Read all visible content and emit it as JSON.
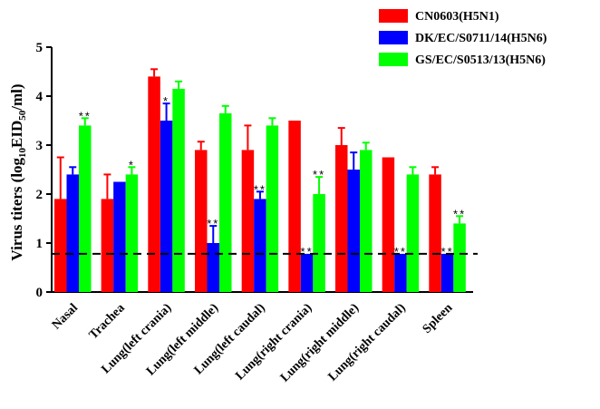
{
  "chart_data": {
    "type": "bar",
    "title": "",
    "xlabel": "",
    "ylabel": "Virus titers (log",
    "ylabel_sub": "10",
    "ylabel_mid": "EID",
    "ylabel_sub2": "50",
    "ylabel_end": "/ml)",
    "ylim": [
      0,
      5
    ],
    "yticks": [
      0,
      1,
      2,
      3,
      4,
      5
    ],
    "detection_limit": 0.78,
    "legend_position": "top-right",
    "categories": [
      "Nasal",
      "Trachea",
      "Lung(left crania)",
      "Lung(left middle)",
      "Lung(left caudal)",
      "Lung(right crania)",
      "Lung(right middle)",
      "Lung(right caudal)",
      "Spleen"
    ],
    "series": [
      {
        "name": "CN0603(H5N1)",
        "color": "#ff0000",
        "values": [
          1.9,
          1.9,
          4.4,
          2.9,
          2.9,
          3.5,
          3.0,
          2.75,
          2.4
        ],
        "errors": [
          0.85,
          0.5,
          0.15,
          0.17,
          0.5,
          0.0,
          0.35,
          0.0,
          0.15
        ],
        "sig": [
          "",
          "",
          "",
          "",
          "",
          "",
          "",
          "",
          ""
        ]
      },
      {
        "name": "DK/EC/S0711/14(H5N6)",
        "color": "#0000ff",
        "values": [
          2.4,
          2.25,
          3.5,
          1.0,
          1.9,
          0.78,
          2.5,
          0.78,
          0.78
        ],
        "errors": [
          0.15,
          0.0,
          0.35,
          0.35,
          0.15,
          0.0,
          0.35,
          0.0,
          0.0
        ],
        "sig": [
          "",
          "",
          "*",
          "**",
          "**",
          "**",
          "",
          "**",
          "**"
        ]
      },
      {
        "name": "GS/EC/S0513/13(H5N6)",
        "color": "#00ff00",
        "values": [
          3.4,
          2.4,
          4.15,
          3.65,
          3.4,
          2.0,
          2.9,
          2.4,
          1.4
        ],
        "errors": [
          0.15,
          0.15,
          0.15,
          0.15,
          0.15,
          0.35,
          0.15,
          0.15,
          0.15
        ],
        "sig": [
          "**",
          "*",
          "",
          "",
          "",
          "**",
          "",
          "",
          "**"
        ]
      }
    ]
  }
}
